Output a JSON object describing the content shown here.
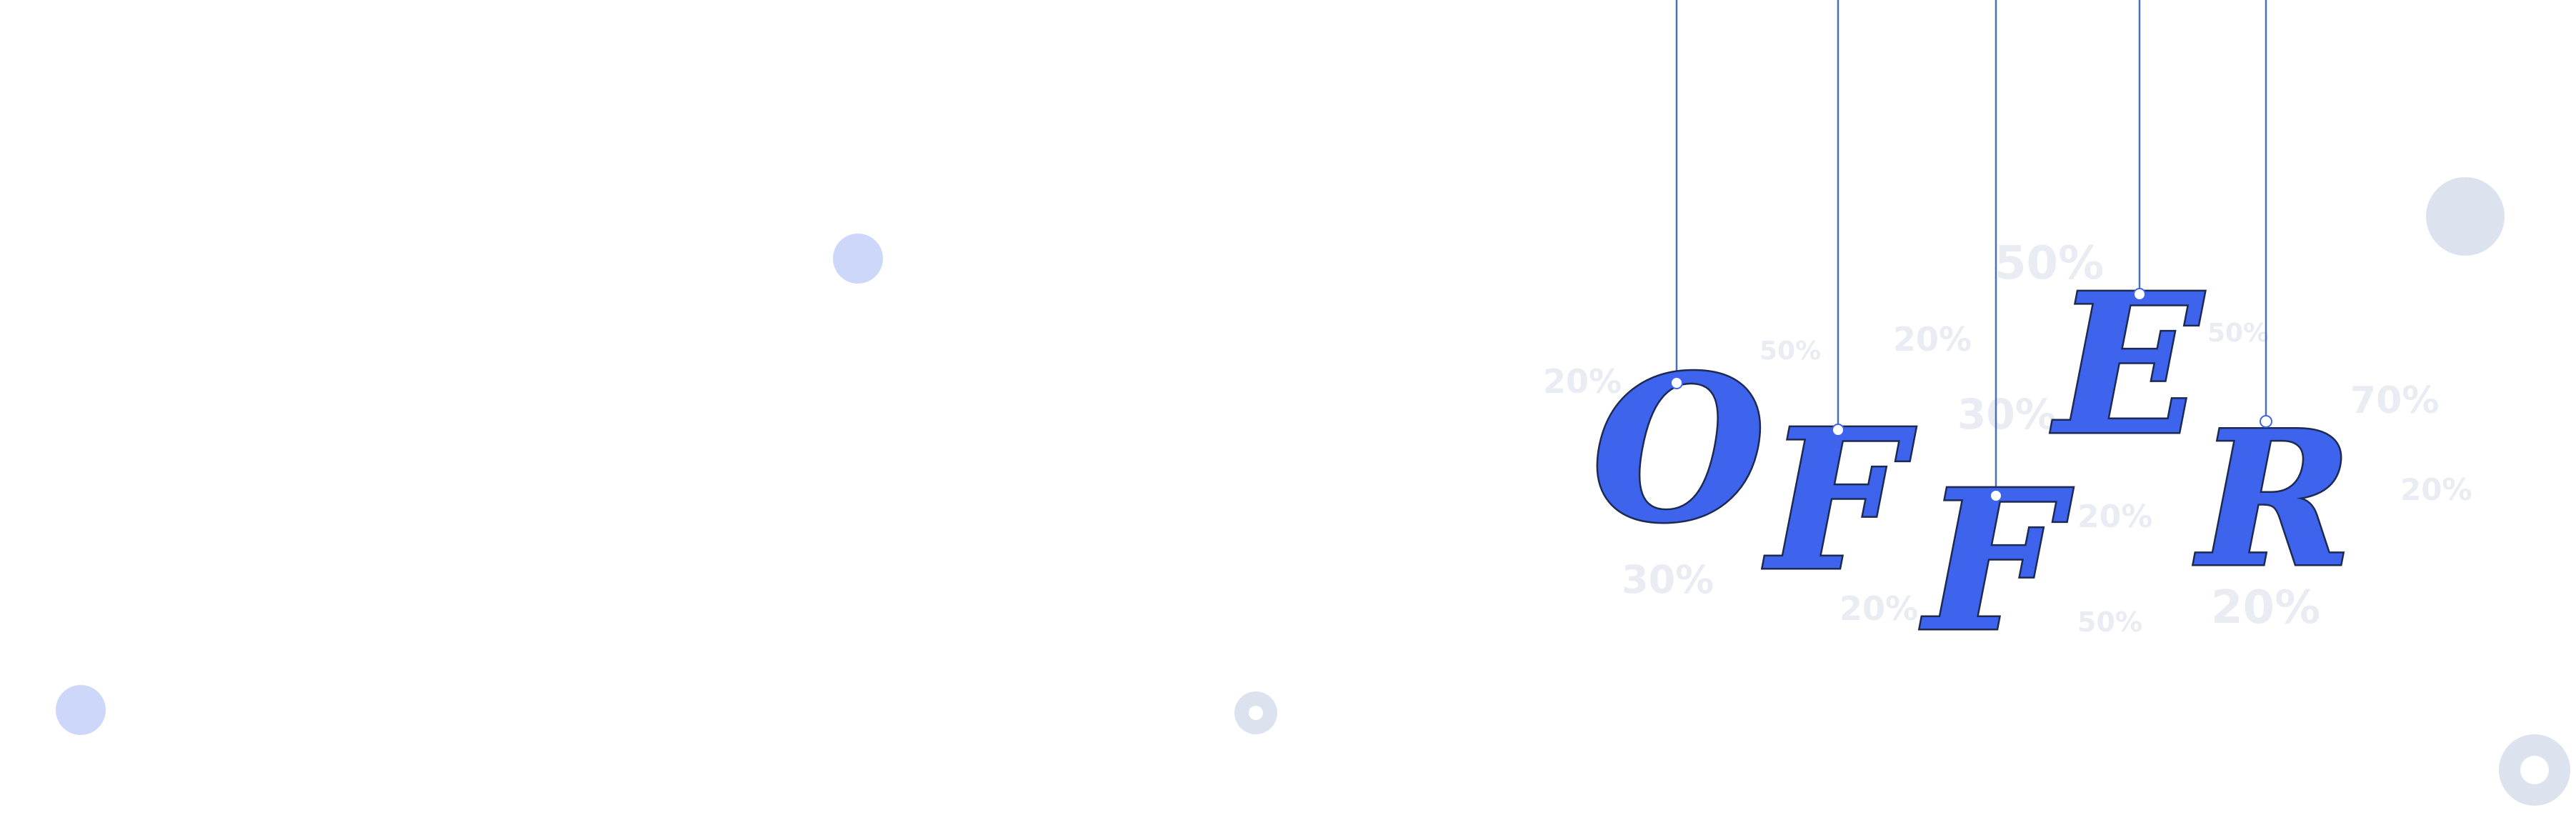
{
  "sign": {
    "letters": [
      "O",
      "F",
      "F",
      "E",
      "R"
    ]
  },
  "discount_tags": [
    "20%",
    "50%",
    "20%",
    "50%",
    "30%",
    "50%",
    "70%",
    "20%",
    "20%",
    "30%",
    "20%",
    "50%",
    "20%"
  ],
  "colors": {
    "letter_fill": "#3e64ee",
    "letter_outline": "#1d2a52",
    "string": "#4d6fb3",
    "discount_text": "#e9ecf3",
    "dot_blue": "#cdd7fa",
    "dot_gray": "#dde3ee"
  }
}
